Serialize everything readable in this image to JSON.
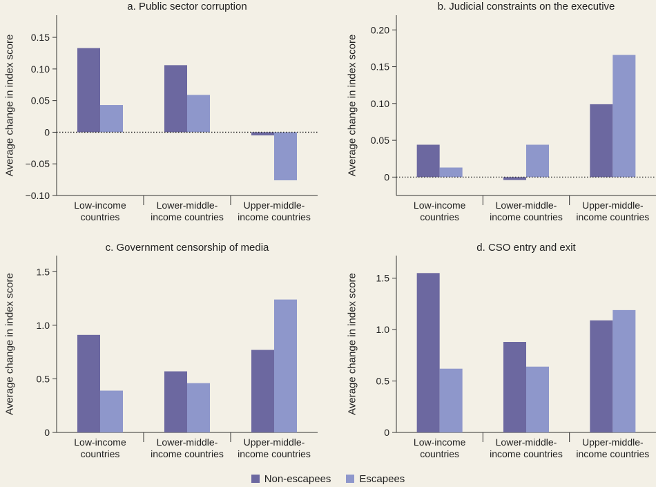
{
  "colors": {
    "background": "#f3f0e6",
    "non_escapees": "#6c68a0",
    "escapees": "#8e97cb"
  },
  "legend": {
    "non_escapees": "Non-escapees",
    "escapees": "Escapees"
  },
  "chart_data": [
    {
      "type": "bar",
      "title": "a. Public sector corruption",
      "ylabel": "Average change in index score",
      "xlabel": "",
      "categories": [
        [
          "Low-income",
          "countries"
        ],
        [
          "Lower-middle-",
          "income countries"
        ],
        [
          "Upper-middle-",
          "income countries"
        ]
      ],
      "series": [
        {
          "name": "Non-escapees",
          "values": [
            0.133,
            0.106,
            -0.005
          ]
        },
        {
          "name": "Escapees",
          "values": [
            0.043,
            0.059,
            -0.076
          ]
        }
      ],
      "ylim": [
        -0.1,
        0.185
      ],
      "yticks": [
        -0.1,
        -0.05,
        0,
        0.05,
        0.1,
        0.15
      ],
      "ytick_labels": [
        "−0.10",
        "−0.05",
        "0",
        "0.05",
        "0.10",
        "0.15"
      ],
      "zero_line": true
    },
    {
      "type": "bar",
      "title": "b. Judicial constraints on the executive",
      "ylabel": "Average change in index score",
      "xlabel": "",
      "categories": [
        [
          "Low-income",
          "countries"
        ],
        [
          "Lower-middle-",
          "income countries"
        ],
        [
          "Upper-middle-",
          "income countries"
        ]
      ],
      "series": [
        {
          "name": "Non-escapees",
          "values": [
            0.044,
            -0.004,
            0.099
          ]
        },
        {
          "name": "Escapees",
          "values": [
            0.013,
            0.044,
            0.166
          ]
        }
      ],
      "ylim": [
        -0.025,
        0.22
      ],
      "yticks": [
        0,
        0.05,
        0.1,
        0.15,
        0.2
      ],
      "ytick_labels": [
        "0",
        "0.05",
        "0.10",
        "0.15",
        "0.20"
      ],
      "zero_line": true
    },
    {
      "type": "bar",
      "title": "c. Government censorship of media",
      "ylabel": "Average change in index score",
      "xlabel": "",
      "categories": [
        [
          "Low-income",
          "countries"
        ],
        [
          "Lower-middle-",
          "income countries"
        ],
        [
          "Upper-middle-",
          "income countries"
        ]
      ],
      "series": [
        {
          "name": "Non-escapees",
          "values": [
            0.91,
            0.57,
            0.77
          ]
        },
        {
          "name": "Escapees",
          "values": [
            0.39,
            0.46,
            1.24
          ]
        }
      ],
      "ylim": [
        0,
        1.65
      ],
      "yticks": [
        0,
        0.5,
        1.0,
        1.5
      ],
      "ytick_labels": [
        "0",
        "0.5",
        "1.0",
        "1.5"
      ],
      "zero_line": false
    },
    {
      "type": "bar",
      "title": "d. CSO entry and exit",
      "ylabel": "Average change in index score",
      "xlabel": "",
      "categories": [
        [
          "Low-income",
          "countries"
        ],
        [
          "Lower-middle-",
          "income countries"
        ],
        [
          "Upper-middle-",
          "income countries"
        ]
      ],
      "series": [
        {
          "name": "Non-escapees",
          "values": [
            1.55,
            0.88,
            1.09
          ]
        },
        {
          "name": "Escapees",
          "values": [
            0.62,
            0.64,
            1.19
          ]
        }
      ],
      "ylim": [
        0,
        1.72
      ],
      "yticks": [
        0,
        0.5,
        1.0,
        1.5
      ],
      "ytick_labels": [
        "0",
        "0.5",
        "1.0",
        "1.5"
      ],
      "zero_line": false
    }
  ]
}
